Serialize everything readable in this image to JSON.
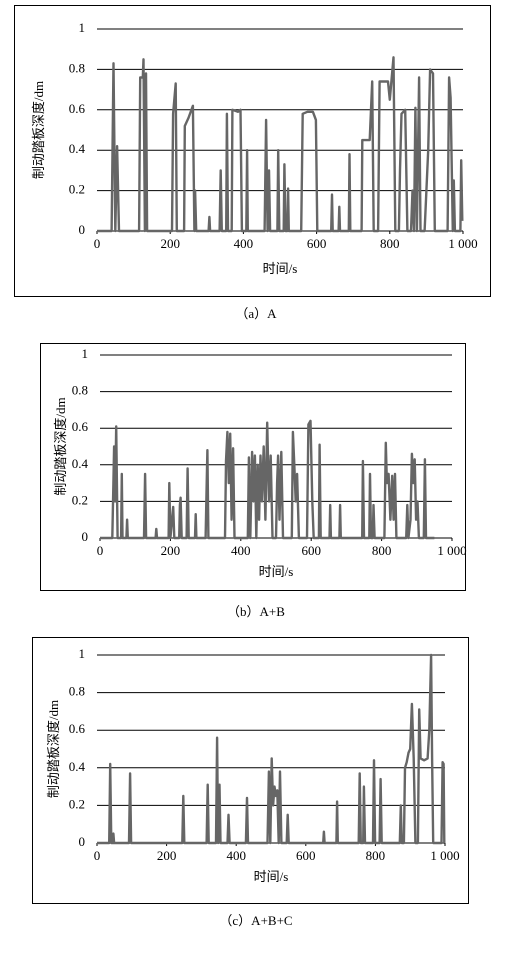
{
  "chart_data": [
    {
      "type": "line",
      "caption": "（a）A",
      "x_label": "时间/s",
      "y_label": "制动踏板深度/dm",
      "color": "#666666",
      "xlim": [
        0,
        1000
      ],
      "ylim": [
        0,
        1
      ],
      "yticks": [
        0,
        0.2,
        0.4,
        0.6,
        0.8,
        1
      ],
      "xticks": [
        0,
        200,
        400,
        600,
        800,
        {
          "value": 1000,
          "label": "1 000"
        }
      ],
      "grid": true,
      "x": [
        0,
        40,
        45,
        50,
        55,
        60,
        115,
        118,
        125,
        127,
        131,
        134,
        137,
        205,
        208,
        215,
        218,
        238,
        240,
        250,
        262,
        266,
        268,
        271,
        305,
        307,
        309,
        335,
        338,
        341,
        353,
        355,
        358,
        368,
        370,
        385,
        392,
        396,
        408,
        410,
        412,
        458,
        462,
        466,
        470,
        473,
        493,
        495,
        498,
        510,
        512,
        515,
        520,
        522,
        524,
        558,
        562,
        575,
        590,
        598,
        602,
        640,
        642,
        644,
        660,
        662,
        664,
        688,
        690,
        692,
        723,
        725,
        745,
        752,
        756,
        768,
        772,
        795,
        800,
        810,
        815,
        825,
        828,
        832,
        842,
        848,
        858,
        862,
        866,
        870,
        874,
        880,
        884,
        895,
        905,
        910,
        918,
        923,
        958,
        962,
        966,
        972,
        975,
        978,
        993,
        995,
        998
      ],
      "values": [
        0,
        0,
        0.83,
        0,
        0.42,
        0,
        0,
        0.76,
        0.76,
        0.85,
        0,
        0.78,
        0,
        0,
        0.58,
        0.73,
        0,
        0,
        0.52,
        0.56,
        0.62,
        0,
        0.2,
        0,
        0,
        0.07,
        0,
        0,
        0.3,
        0,
        0,
        0.58,
        0,
        0,
        0.6,
        0.59,
        0.6,
        0,
        0,
        0.4,
        0,
        0,
        0.55,
        0,
        0.3,
        0,
        0,
        0.4,
        0,
        0,
        0.33,
        0,
        0,
        0.21,
        0,
        0,
        0.58,
        0.59,
        0.59,
        0.55,
        0,
        0,
        0.18,
        0,
        0,
        0.12,
        0,
        0,
        0.38,
        0,
        0,
        0.45,
        0.45,
        0.74,
        0,
        0,
        0.74,
        0.74,
        0.65,
        0.86,
        0,
        0,
        0.3,
        0.58,
        0.6,
        0,
        0,
        0.2,
        0,
        0.61,
        0,
        0.76,
        0,
        0,
        0.4,
        0.8,
        0.78,
        0,
        0,
        0.76,
        0.66,
        0,
        0.25,
        0,
        0,
        0.35,
        0.05
      ]
    },
    {
      "type": "line",
      "caption": "（b）A+B",
      "x_label": "时间/s",
      "y_label": "制动踏板深度/dm",
      "color": "#666666",
      "xlim": [
        0,
        1000
      ],
      "ylim": [
        0,
        1
      ],
      "yticks": [
        0,
        0.2,
        0.4,
        0.6,
        0.8,
        1
      ],
      "xticks": [
        0,
        200,
        400,
        600,
        800,
        {
          "value": 1000,
          "label": "1 000"
        }
      ],
      "grid": true,
      "x": [
        0,
        35,
        38,
        40,
        43,
        46,
        50,
        60,
        62,
        64,
        75,
        77,
        79,
        125,
        128,
        131,
        158,
        160,
        162,
        195,
        197,
        200,
        208,
        211,
        225,
        227,
        229,
        232,
        246,
        249,
        252,
        270,
        272,
        274,
        300,
        303,
        305,
        308,
        355,
        358,
        362,
        366,
        370,
        374,
        378,
        382,
        420,
        423,
        427,
        432,
        436,
        440,
        444,
        448,
        452,
        456,
        460,
        465,
        470,
        475,
        480,
        485,
        490,
        500,
        503,
        506,
        510,
        515,
        520,
        545,
        548,
        552,
        556,
        560,
        565,
        588,
        592,
        598,
        603,
        607,
        622,
        624,
        627,
        652,
        654,
        656,
        680,
        682,
        684,
        745,
        747,
        750,
        765,
        767,
        770,
        775,
        777,
        780,
        808,
        812,
        815,
        820,
        825,
        830,
        834,
        838,
        842,
        870,
        873,
        876,
        882,
        886,
        890,
        894,
        898,
        902,
        906,
        920,
        923,
        926,
        935,
        950
      ],
      "values": [
        0,
        0,
        0.3,
        0.5,
        0.2,
        0.61,
        0,
        0,
        0.35,
        0,
        0,
        0.1,
        0,
        0,
        0.35,
        0,
        0,
        0.05,
        0,
        0,
        0.3,
        0,
        0.17,
        0,
        0,
        0.18,
        0.22,
        0,
        0,
        0.38,
        0,
        0,
        0.13,
        0,
        0,
        0.3,
        0.48,
        0,
        0,
        0.42,
        0.58,
        0.3,
        0.57,
        0.1,
        0.49,
        0,
        0,
        0.44,
        0,
        0.47,
        0.2,
        0.45,
        0,
        0.4,
        0.1,
        0.45,
        0.2,
        0.5,
        0.1,
        0.63,
        0.2,
        0.45,
        0,
        0,
        0.3,
        0.45,
        0.1,
        0.47,
        0,
        0,
        0.58,
        0.4,
        0.2,
        0.35,
        0,
        0,
        0.62,
        0.64,
        0.2,
        0,
        0,
        0.51,
        0,
        0,
        0.18,
        0,
        0,
        0.18,
        0,
        0,
        0.42,
        0,
        0,
        0.35,
        0,
        0,
        0.18,
        0,
        0,
        0.52,
        0.3,
        0.35,
        0.1,
        0.34,
        0.1,
        0.35,
        0,
        0,
        0.18,
        0,
        0.1,
        0.46,
        0.3,
        0.43,
        0.1,
        0.2,
        0,
        0,
        0.43,
        0,
        0,
        0
      ]
    },
    {
      "type": "line",
      "caption": "（c）A+B+C",
      "x_label": "时间/s",
      "y_label": "制动踏板深度/dm",
      "color": "#666666",
      "xlim": [
        0,
        1000
      ],
      "ylim": [
        0,
        1
      ],
      "yticks": [
        0,
        0.2,
        0.4,
        0.6,
        0.8,
        1
      ],
      "xticks": [
        0,
        200,
        400,
        600,
        800,
        {
          "value": 1000,
          "label": "1 000"
        }
      ],
      "grid": true,
      "x": [
        0,
        35,
        38,
        41,
        45,
        47,
        49,
        92,
        95,
        98,
        245,
        248,
        251,
        315,
        318,
        321,
        342,
        345,
        348,
        352,
        355,
        375,
        378,
        381,
        428,
        431,
        434,
        490,
        494,
        498,
        502,
        506,
        510,
        514,
        518,
        522,
        526,
        530,
        545,
        548,
        551,
        650,
        652,
        654,
        688,
        690,
        692,
        752,
        755,
        758,
        765,
        767,
        770,
        793,
        796,
        799,
        812,
        815,
        818,
        870,
        873,
        876,
        882,
        885,
        890,
        895,
        900,
        905,
        910,
        915,
        922,
        926,
        930,
        940,
        950,
        955,
        960,
        963,
        966,
        990,
        993,
        996,
        998
      ],
      "values": [
        0,
        0,
        0.42,
        0,
        0,
        0.05,
        0,
        0,
        0.37,
        0,
        0,
        0.25,
        0,
        0,
        0.31,
        0,
        0,
        0.56,
        0,
        0.31,
        0,
        0,
        0.15,
        0,
        0,
        0.24,
        0,
        0,
        0.38,
        0,
        0.45,
        0.2,
        0.3,
        0.25,
        0.28,
        0,
        0.38,
        0,
        0,
        0.15,
        0,
        0,
        0.06,
        0,
        0,
        0.22,
        0,
        0,
        0.37,
        0,
        0,
        0.3,
        0,
        0,
        0.44,
        0,
        0,
        0.34,
        0,
        0,
        0.2,
        0,
        0,
        0.4,
        0.43,
        0.48,
        0.5,
        0.74,
        0.45,
        0,
        0,
        0.71,
        0.45,
        0.44,
        0.45,
        0.6,
        1,
        0.45,
        0,
        0,
        0.43,
        0.42,
        0
      ]
    }
  ]
}
